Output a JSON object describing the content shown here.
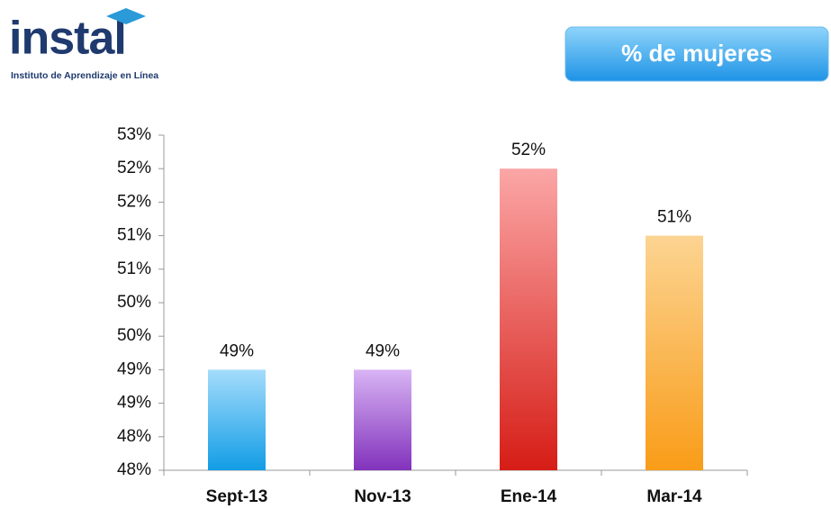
{
  "logo": {
    "name": "instal",
    "subtitle": "Instituto de Aprendizaje en Línea"
  },
  "chart_data": {
    "type": "bar",
    "title": "% de mujeres",
    "categories": [
      "Sept-13",
      "Nov-13",
      "Ene-14",
      "Mar-14"
    ],
    "values": [
      49.1,
      49.1,
      52.1,
      51.1
    ],
    "value_labels": [
      "49%",
      "49%",
      "52%",
      "51%"
    ],
    "colors": [
      [
        "#a4dcfb",
        "#129de6"
      ],
      [
        "#d8b4f4",
        "#8232bc"
      ],
      [
        "#fba6a6",
        "#d61d16"
      ],
      [
        "#fcd492",
        "#f99c18"
      ]
    ],
    "ylim": [
      47.6,
      52.6
    ],
    "yticks": [
      {
        "value": 47.6,
        "label": "48%"
      },
      {
        "value": 48.1,
        "label": "48%"
      },
      {
        "value": 48.6,
        "label": "49%"
      },
      {
        "value": 49.1,
        "label": "49%"
      },
      {
        "value": 49.6,
        "label": "50%"
      },
      {
        "value": 50.1,
        "label": "50%"
      },
      {
        "value": 50.6,
        "label": "51%"
      },
      {
        "value": 51.1,
        "label": "51%"
      },
      {
        "value": 51.6,
        "label": "52%"
      },
      {
        "value": 52.1,
        "label": "52%"
      },
      {
        "value": 52.6,
        "label": "53%"
      }
    ],
    "grid": false
  }
}
